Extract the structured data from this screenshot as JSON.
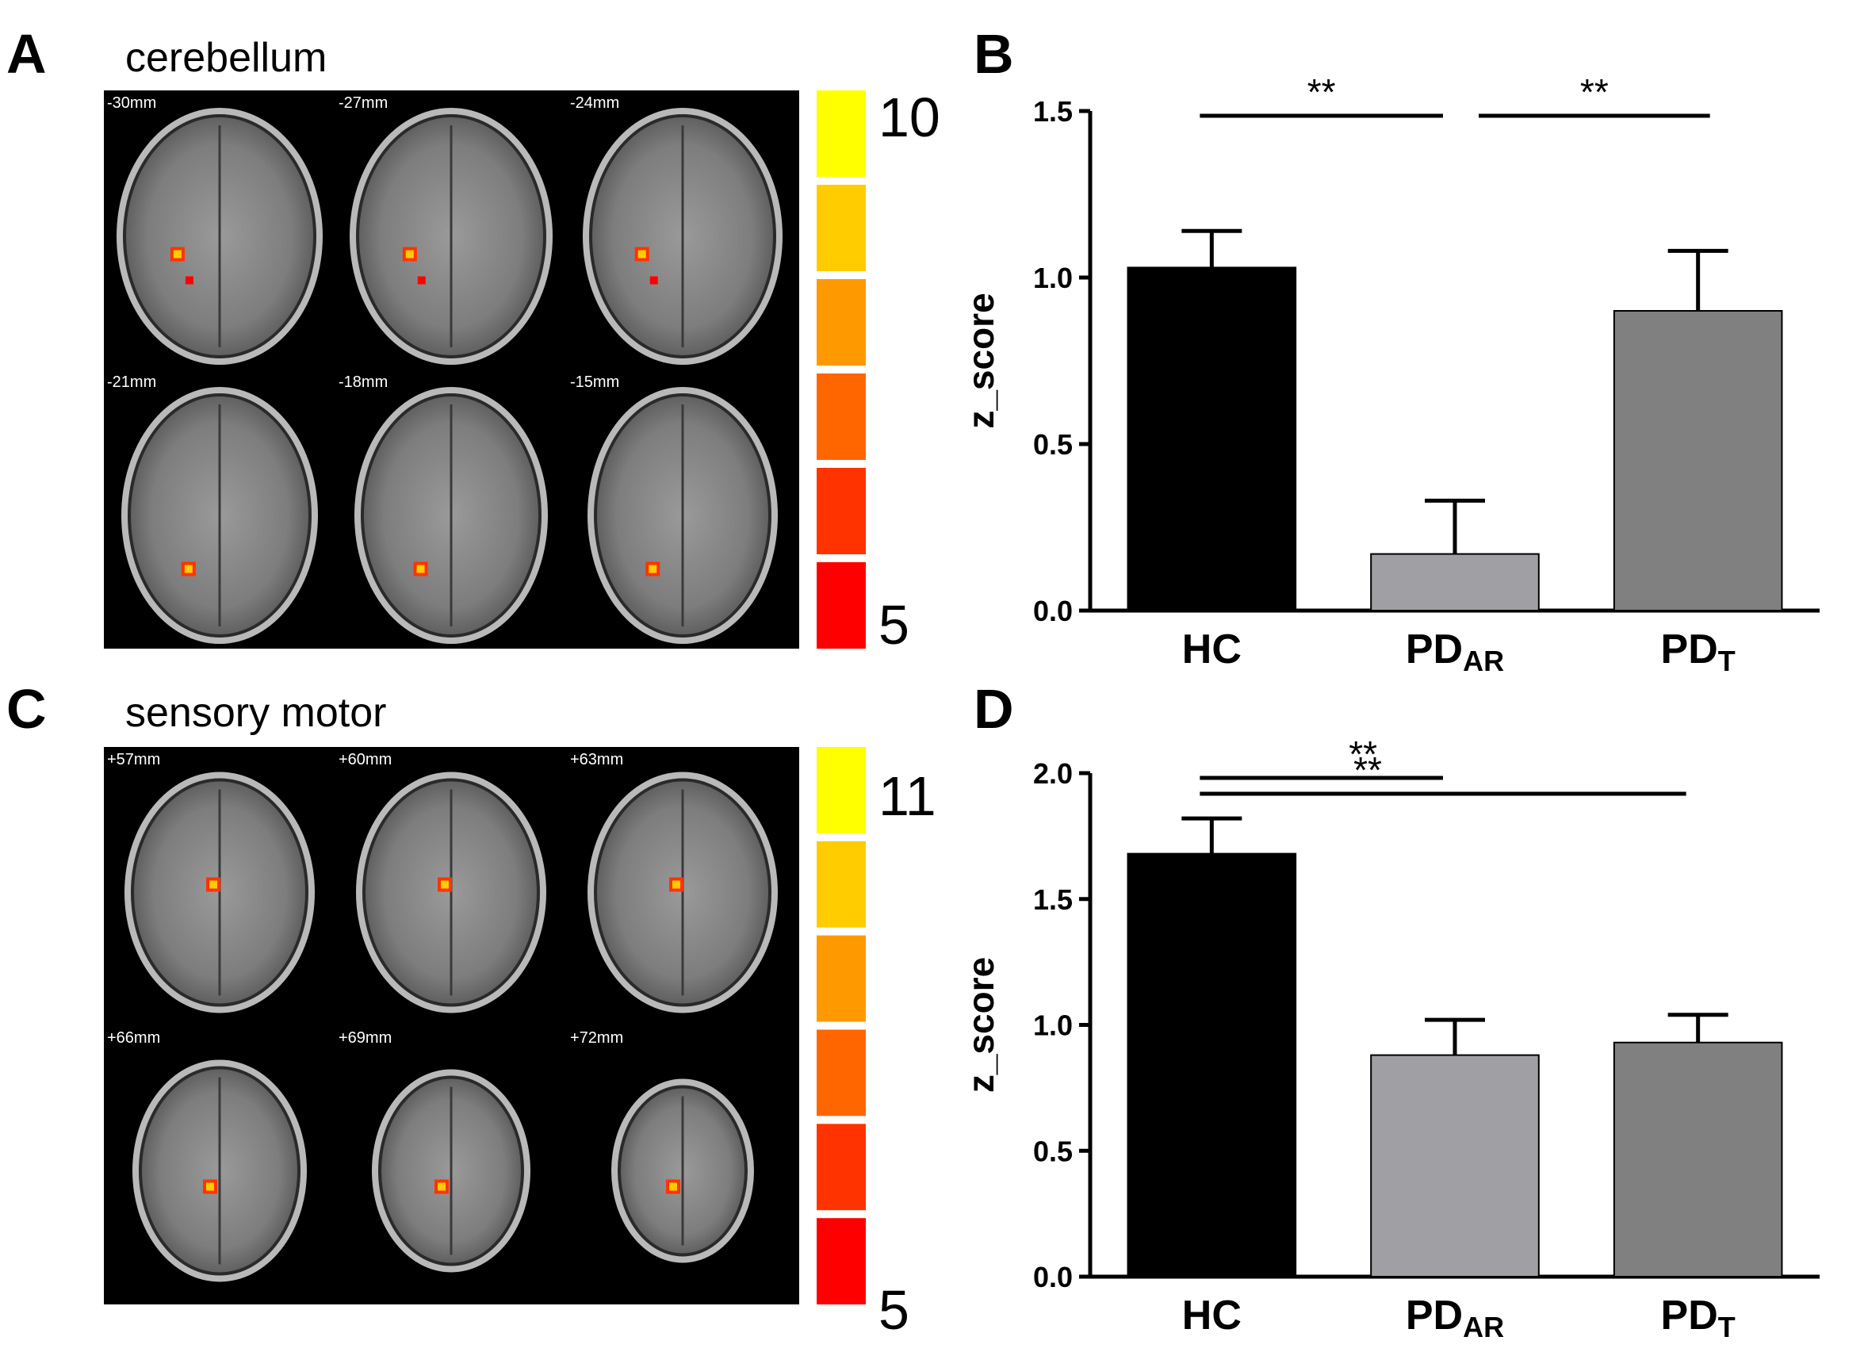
{
  "panels": {
    "A": {
      "letter": "A",
      "region": "cerebellum",
      "slices": [
        "-30mm",
        "-27mm",
        "-24mm",
        "-21mm",
        "-18mm",
        "-15mm"
      ],
      "colorbar": {
        "max_label": "10",
        "min_label": "5",
        "colors": [
          "#ffff00",
          "#ffcc00",
          "#ff9900",
          "#ff6600",
          "#ff3300",
          "#ff0000"
        ]
      }
    },
    "C": {
      "letter": "C",
      "region": "sensory motor",
      "slices": [
        "+57mm",
        "+60mm",
        "+63mm",
        "+66mm",
        "+69mm",
        "+72mm"
      ],
      "colorbar": {
        "max_label": "11",
        "min_label": "5",
        "colors": [
          "#ffff00",
          "#ffcc00",
          "#ff9900",
          "#ff6600",
          "#ff3300",
          "#ff0000"
        ]
      }
    },
    "B": {
      "letter": "B"
    },
    "D": {
      "letter": "D"
    }
  },
  "chart_data": [
    {
      "panel": "B",
      "type": "bar",
      "categories": [
        {
          "main": "HC",
          "sub": ""
        },
        {
          "main": "PD",
          "sub": "AR"
        },
        {
          "main": "PD",
          "sub": "T"
        }
      ],
      "values": [
        1.03,
        0.17,
        0.9
      ],
      "errors": [
        0.11,
        0.16,
        0.18
      ],
      "colors": [
        "#000000",
        "#a0a0a4",
        "#808080"
      ],
      "ylabel": "z_score",
      "ylim": [
        0.0,
        1.5
      ],
      "yticks": [
        "0.0",
        "0.5",
        "1.0",
        "1.5"
      ],
      "significance": [
        {
          "from": 0,
          "to": 1,
          "label": "**"
        },
        {
          "from": 1,
          "to": 2,
          "label": "**"
        }
      ]
    },
    {
      "panel": "D",
      "type": "bar",
      "categories": [
        {
          "main": "HC",
          "sub": ""
        },
        {
          "main": "PD",
          "sub": "AR"
        },
        {
          "main": "PD",
          "sub": "T"
        }
      ],
      "values": [
        1.68,
        0.88,
        0.93
      ],
      "errors": [
        0.14,
        0.14,
        0.11
      ],
      "colors": [
        "#000000",
        "#a0a0a4",
        "#808080"
      ],
      "ylabel": "z_score",
      "ylim": [
        0.0,
        2.0
      ],
      "yticks": [
        "0.0",
        "0.5",
        "1.0",
        "1.5",
        "2.0"
      ],
      "significance": [
        {
          "from": 0,
          "to": 1,
          "label": "**"
        },
        {
          "from": 0,
          "to": 2,
          "label": "**"
        }
      ]
    }
  ]
}
